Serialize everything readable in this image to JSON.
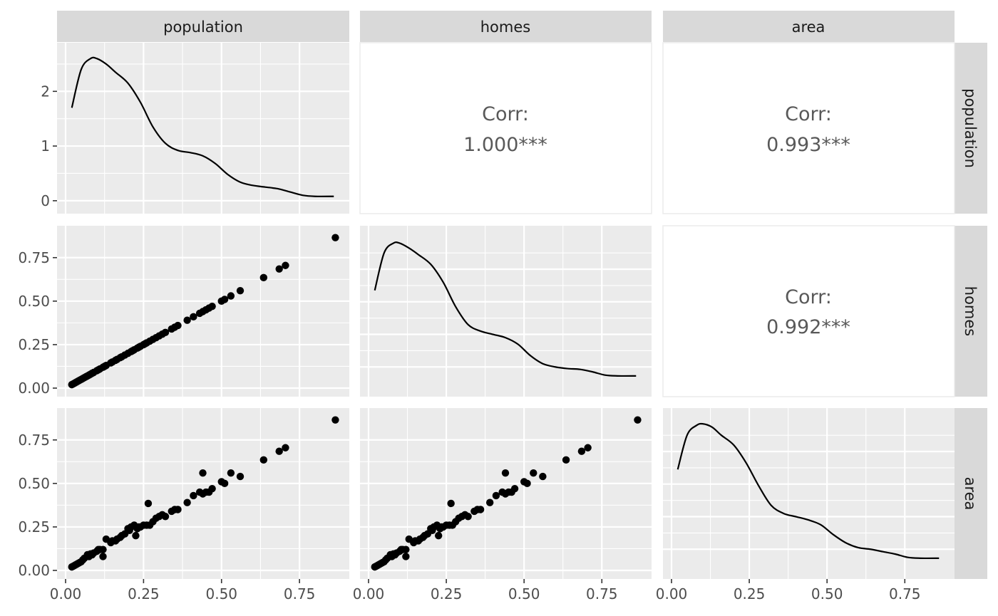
{
  "chart_data": {
    "type": "scatter",
    "subtype": "pairs-matrix",
    "variables": [
      "population",
      "homes",
      "area"
    ],
    "axis_range": [
      0,
      0.88
    ],
    "x_ticks": [
      "0.00",
      "0.25",
      "0.50",
      "0.75"
    ],
    "y_ticks_density": [
      "0",
      "1",
      "2"
    ],
    "y_ticks_scatter": [
      "0.00",
      "0.25",
      "0.50",
      "0.75"
    ],
    "grid": true,
    "correlations": [
      {
        "row": "population",
        "col": "homes",
        "label": "Corr:",
        "value": "1.000***"
      },
      {
        "row": "population",
        "col": "area",
        "label": "Corr:",
        "value": "0.993***"
      },
      {
        "row": "homes",
        "col": "area",
        "label": "Corr:",
        "value": "0.992***"
      }
    ],
    "density_population": {
      "x": [
        0.02,
        0.05,
        0.08,
        0.1,
        0.13,
        0.16,
        0.2,
        0.24,
        0.28,
        0.32,
        0.36,
        0.4,
        0.44,
        0.48,
        0.52,
        0.56,
        0.6,
        0.64,
        0.68,
        0.72,
        0.76,
        0.8,
        0.86
      ],
      "y": [
        1.7,
        2.4,
        2.6,
        2.6,
        2.5,
        2.35,
        2.15,
        1.8,
        1.35,
        1.05,
        0.92,
        0.88,
        0.82,
        0.68,
        0.48,
        0.34,
        0.28,
        0.25,
        0.22,
        0.16,
        0.1,
        0.08,
        0.08
      ]
    },
    "density_homes": {
      "x": [
        0.02,
        0.05,
        0.08,
        0.1,
        0.13,
        0.16,
        0.2,
        0.24,
        0.28,
        0.32,
        0.36,
        0.4,
        0.44,
        0.48,
        0.52,
        0.56,
        0.6,
        0.64,
        0.68,
        0.72,
        0.76,
        0.8,
        0.86
      ],
      "y": [
        0.57,
        0.8,
        0.86,
        0.86,
        0.83,
        0.79,
        0.73,
        0.62,
        0.47,
        0.36,
        0.32,
        0.3,
        0.28,
        0.24,
        0.17,
        0.12,
        0.1,
        0.09,
        0.085,
        0.07,
        0.05,
        0.045,
        0.045
      ]
    },
    "density_area": {
      "x": [
        0.02,
        0.05,
        0.08,
        0.1,
        0.13,
        0.16,
        0.2,
        0.24,
        0.28,
        0.32,
        0.36,
        0.4,
        0.44,
        0.48,
        0.52,
        0.56,
        0.6,
        0.64,
        0.68,
        0.72,
        0.76,
        0.8,
        0.86
      ],
      "y": [
        0.59,
        0.8,
        0.86,
        0.87,
        0.85,
        0.8,
        0.74,
        0.63,
        0.49,
        0.37,
        0.32,
        0.3,
        0.28,
        0.25,
        0.19,
        0.14,
        0.11,
        0.1,
        0.085,
        0.07,
        0.05,
        0.045,
        0.045
      ]
    },
    "points_pop_homes": {
      "x": [
        0.02,
        0.025,
        0.03,
        0.035,
        0.04,
        0.045,
        0.05,
        0.055,
        0.06,
        0.065,
        0.07,
        0.075,
        0.08,
        0.085,
        0.09,
        0.1,
        0.105,
        0.11,
        0.12,
        0.125,
        0.13,
        0.145,
        0.15,
        0.16,
        0.165,
        0.175,
        0.18,
        0.19,
        0.2,
        0.21,
        0.215,
        0.22,
        0.23,
        0.235,
        0.24,
        0.25,
        0.255,
        0.26,
        0.27,
        0.28,
        0.29,
        0.3,
        0.31,
        0.32,
        0.34,
        0.35,
        0.36,
        0.39,
        0.41,
        0.43,
        0.44,
        0.45,
        0.46,
        0.47,
        0.5,
        0.51,
        0.53,
        0.56,
        0.635,
        0.685,
        0.705,
        0.865
      ],
      "y": [
        0.02,
        0.025,
        0.03,
        0.035,
        0.04,
        0.045,
        0.05,
        0.055,
        0.06,
        0.065,
        0.07,
        0.075,
        0.08,
        0.085,
        0.09,
        0.1,
        0.105,
        0.11,
        0.12,
        0.125,
        0.13,
        0.145,
        0.15,
        0.16,
        0.165,
        0.175,
        0.18,
        0.19,
        0.2,
        0.21,
        0.215,
        0.22,
        0.23,
        0.235,
        0.24,
        0.25,
        0.255,
        0.26,
        0.27,
        0.28,
        0.29,
        0.3,
        0.31,
        0.32,
        0.34,
        0.35,
        0.36,
        0.39,
        0.41,
        0.43,
        0.44,
        0.45,
        0.46,
        0.47,
        0.5,
        0.51,
        0.53,
        0.56,
        0.635,
        0.685,
        0.705,
        0.865
      ]
    },
    "points_pop_area": {
      "x": [
        0.02,
        0.025,
        0.03,
        0.035,
        0.04,
        0.045,
        0.05,
        0.055,
        0.06,
        0.07,
        0.075,
        0.08,
        0.085,
        0.09,
        0.1,
        0.105,
        0.11,
        0.12,
        0.12,
        0.13,
        0.145,
        0.15,
        0.16,
        0.165,
        0.175,
        0.18,
        0.19,
        0.2,
        0.205,
        0.21,
        0.22,
        0.225,
        0.23,
        0.235,
        0.24,
        0.25,
        0.26,
        0.265,
        0.27,
        0.28,
        0.29,
        0.3,
        0.31,
        0.32,
        0.34,
        0.35,
        0.36,
        0.39,
        0.41,
        0.43,
        0.44,
        0.44,
        0.45,
        0.46,
        0.47,
        0.5,
        0.51,
        0.53,
        0.56,
        0.635,
        0.685,
        0.705,
        0.865
      ],
      "y": [
        0.02,
        0.025,
        0.03,
        0.035,
        0.04,
        0.045,
        0.05,
        0.06,
        0.07,
        0.09,
        0.08,
        0.095,
        0.09,
        0.1,
        0.11,
        0.12,
        0.12,
        0.08,
        0.12,
        0.18,
        0.16,
        0.17,
        0.17,
        0.18,
        0.19,
        0.2,
        0.21,
        0.24,
        0.23,
        0.25,
        0.26,
        0.2,
        0.24,
        0.25,
        0.25,
        0.26,
        0.26,
        0.385,
        0.26,
        0.28,
        0.3,
        0.31,
        0.32,
        0.31,
        0.34,
        0.35,
        0.35,
        0.39,
        0.43,
        0.45,
        0.44,
        0.56,
        0.45,
        0.45,
        0.47,
        0.51,
        0.5,
        0.56,
        0.54,
        0.635,
        0.685,
        0.705,
        0.865
      ]
    },
    "points_homes_area": {
      "x": [
        0.02,
        0.025,
        0.03,
        0.035,
        0.04,
        0.045,
        0.05,
        0.055,
        0.06,
        0.07,
        0.075,
        0.08,
        0.085,
        0.09,
        0.1,
        0.105,
        0.11,
        0.12,
        0.12,
        0.13,
        0.145,
        0.15,
        0.16,
        0.165,
        0.175,
        0.18,
        0.19,
        0.2,
        0.205,
        0.21,
        0.22,
        0.225,
        0.23,
        0.235,
        0.24,
        0.25,
        0.26,
        0.265,
        0.27,
        0.28,
        0.29,
        0.3,
        0.31,
        0.32,
        0.34,
        0.35,
        0.36,
        0.39,
        0.41,
        0.43,
        0.44,
        0.44,
        0.45,
        0.46,
        0.47,
        0.5,
        0.51,
        0.53,
        0.56,
        0.635,
        0.685,
        0.705,
        0.865
      ],
      "y": [
        0.02,
        0.025,
        0.03,
        0.035,
        0.04,
        0.045,
        0.05,
        0.06,
        0.07,
        0.09,
        0.08,
        0.095,
        0.09,
        0.1,
        0.11,
        0.12,
        0.12,
        0.08,
        0.12,
        0.18,
        0.16,
        0.17,
        0.17,
        0.18,
        0.19,
        0.2,
        0.21,
        0.24,
        0.23,
        0.25,
        0.26,
        0.2,
        0.24,
        0.25,
        0.25,
        0.26,
        0.26,
        0.385,
        0.26,
        0.28,
        0.3,
        0.31,
        0.32,
        0.31,
        0.34,
        0.35,
        0.35,
        0.39,
        0.43,
        0.45,
        0.44,
        0.56,
        0.45,
        0.45,
        0.47,
        0.51,
        0.5,
        0.56,
        0.54,
        0.635,
        0.685,
        0.705,
        0.865
      ]
    }
  }
}
